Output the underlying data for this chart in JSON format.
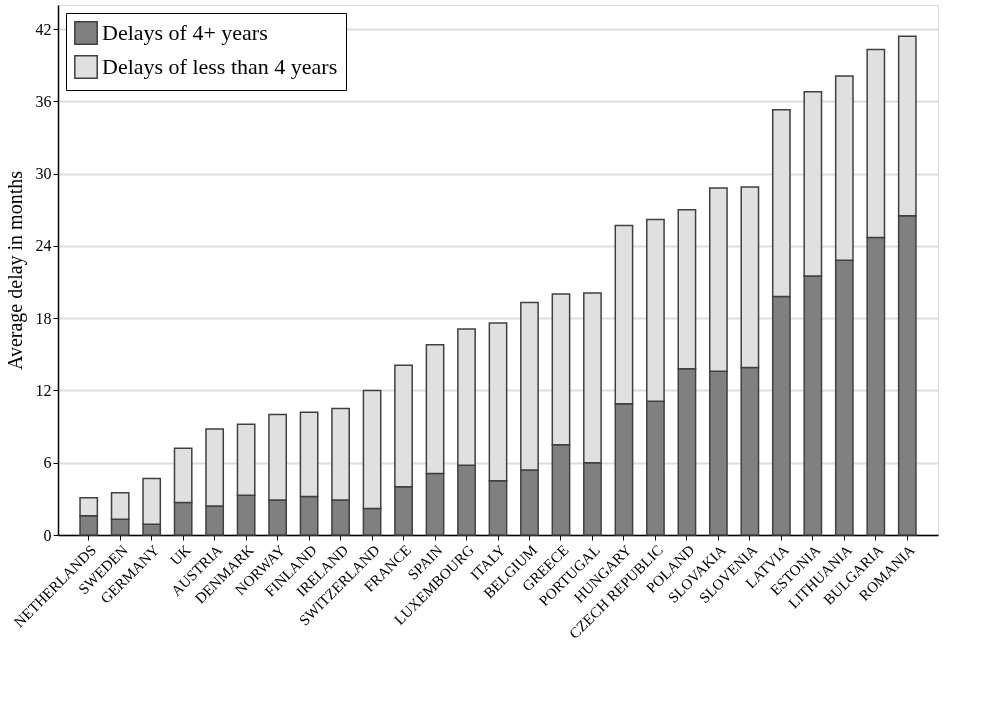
{
  "chart_data": {
    "type": "bar",
    "stacked": true,
    "ylabel": "Average delay in months",
    "categories": [
      "NETHERLANDS",
      "SWEDEN",
      "GERMANY",
      "UK",
      "AUSTRIA",
      "DENMARK",
      "NORWAY",
      "FINLAND",
      "IRELAND",
      "SWITZERLAND",
      "FRANCE",
      "SPAIN",
      "LUXEMBOURG",
      "ITALY",
      "BELGIUM",
      "GREECE",
      "PORTUGAL",
      "HUNGARY",
      "CZECH REPUBLIC",
      "POLAND",
      "SLOVAKIA",
      "SLOVENIA",
      "LATVIA",
      "ESTONIA",
      "LITHUANIA",
      "BULGARIA",
      "ROMANIA"
    ],
    "series": [
      {
        "name": "Delays of 4+ years",
        "color": "#808080",
        "values": [
          1.6,
          1.3,
          0.9,
          2.7,
          2.4,
          3.3,
          2.9,
          3.2,
          2.9,
          2.2,
          4.0,
          5.1,
          5.8,
          4.5,
          5.4,
          7.5,
          6.0,
          10.9,
          11.1,
          13.8,
          13.6,
          13.9,
          19.8,
          21.5,
          22.8,
          24.7,
          26.5
        ]
      },
      {
        "name": "Delays of less than 4 years",
        "color": "#e0e0e0",
        "values": [
          1.5,
          2.2,
          3.8,
          4.5,
          6.4,
          5.9,
          7.1,
          7.0,
          7.6,
          9.8,
          10.1,
          10.7,
          11.3,
          13.1,
          13.9,
          12.5,
          14.1,
          14.8,
          15.1,
          13.2,
          15.2,
          15.0,
          15.5,
          15.3,
          15.3,
          15.6,
          14.9
        ]
      }
    ],
    "ylim": [
      0,
      44
    ],
    "yticks": [
      0,
      6,
      12,
      18,
      24,
      30,
      36,
      42
    ],
    "grid": "y",
    "legend": "top left"
  }
}
